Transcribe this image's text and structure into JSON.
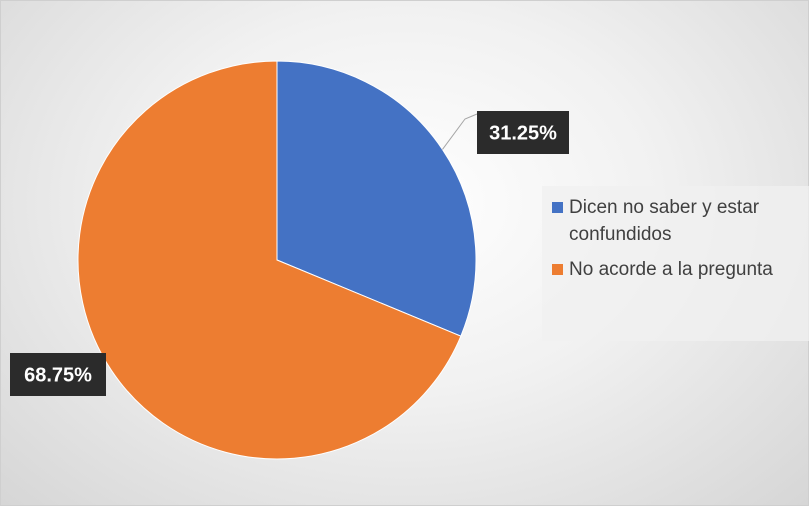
{
  "chart_data": {
    "type": "pie",
    "categories": [
      "Dicen no saber y estar confundidos",
      "No acorde a la pregunta"
    ],
    "values": [
      31.25,
      68.75
    ],
    "data_labels": [
      "31.25%",
      "68.75%"
    ],
    "colors": [
      "#4472C4",
      "#ED7D31"
    ],
    "legend": {
      "position": "right",
      "entries": [
        "Dicen no saber y estar confundidos",
        "No acorde a la pregunta"
      ]
    },
    "title": ""
  }
}
